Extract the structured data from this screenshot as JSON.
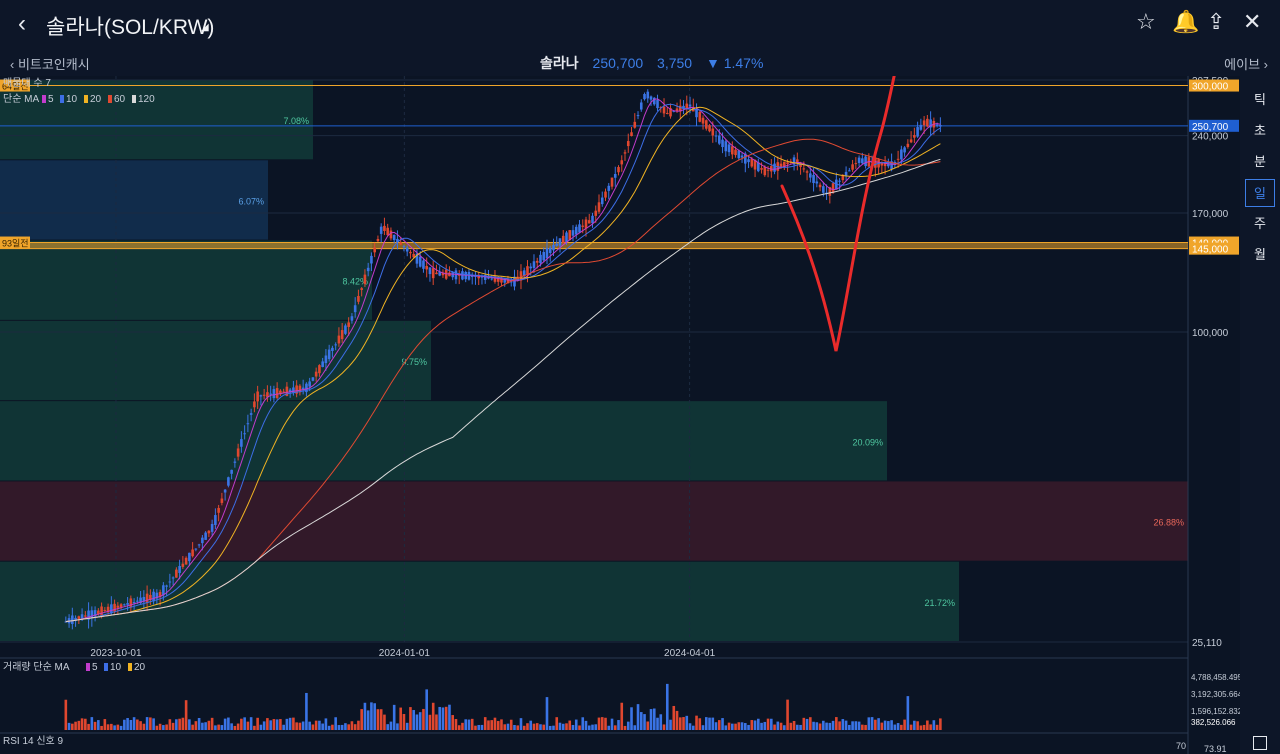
{
  "header": {
    "title": "솔라나(SOL/KRW)",
    "prev_coin": "비트코인캐시",
    "next_coin": "에이브",
    "ticker_name": "솔라나",
    "price": "250,700",
    "change": "3,750",
    "change_pct": "▼ 1.47%"
  },
  "timeframes": [
    {
      "label": "틱",
      "active": false
    },
    {
      "label": "초",
      "active": false
    },
    {
      "label": "분",
      "active": false
    },
    {
      "label": "일",
      "active": true
    },
    {
      "label": "주",
      "active": false
    },
    {
      "label": "월",
      "active": false
    }
  ],
  "chart_data": {
    "type": "candlestick",
    "title": "솔라나(SOL/KRW)",
    "ylabel": "",
    "xlabel": "",
    "y_scale": "log",
    "ylim": [
      25110,
      307500
    ],
    "y_ticks": [
      "307,500",
      "240,000",
      "170,000",
      "100,000",
      "25,110"
    ],
    "x_ticks": [
      "2023-10-01",
      "2024-01-01",
      "2024-04-01"
    ],
    "legend_texts": {
      "volume_profile": "매물대 수 7",
      "ma": "단순 MA",
      "ma_periods": [
        "5",
        "10",
        "20",
        "60",
        "120"
      ],
      "volume": "거래량 단순 MA",
      "volume_ma_periods": [
        "5",
        "10",
        "20"
      ],
      "rsi": "RSI 14 신호 9"
    },
    "price_badges": [
      {
        "label": "300,000",
        "value": 300000,
        "color": "#f0a52a"
      },
      {
        "label": "250,700",
        "value": 250700,
        "color": "#1f5fd1"
      },
      {
        "label": "149,000",
        "value": 149000,
        "color": "#f0a52a"
      },
      {
        "label": "145,000",
        "value": 145000,
        "color": "#f0a52a"
      }
    ],
    "left_labels": [
      {
        "label": "64일전",
        "value": 300000
      },
      {
        "label": "93일전",
        "value": 149000
      }
    ],
    "volume_profile": [
      {
        "pct": "7.08%",
        "color": "#123a38"
      },
      {
        "pct": "6.07%",
        "color": "#133052"
      },
      {
        "pct": "8.42%",
        "color": "#123a38"
      },
      {
        "pct": "9.75%",
        "color": "#123a38"
      },
      {
        "pct": "20.09%",
        "color": "#123a38"
      },
      {
        "pct": "26.88%",
        "color": "#3a1a2a"
      },
      {
        "pct": "21.72%",
        "color": "#123a38"
      }
    ],
    "price_path": [
      {
        "date": "2023-09-15",
        "close": 27500
      },
      {
        "date": "2023-10-15",
        "close": 31000
      },
      {
        "date": "2023-11-01",
        "close": 42000
      },
      {
        "date": "2023-11-15",
        "close": 75000
      },
      {
        "date": "2023-12-01",
        "close": 78000
      },
      {
        "date": "2023-12-15",
        "close": 105000
      },
      {
        "date": "2023-12-25",
        "close": 160000
      },
      {
        "date": "2024-01-10",
        "close": 130000
      },
      {
        "date": "2024-01-25",
        "close": 128000
      },
      {
        "date": "2024-02-05",
        "close": 125000
      },
      {
        "date": "2024-02-20",
        "close": 150000
      },
      {
        "date": "2024-03-01",
        "close": 165000
      },
      {
        "date": "2024-03-10",
        "close": 210000
      },
      {
        "date": "2024-03-18",
        "close": 290000
      },
      {
        "date": "2024-03-25",
        "close": 265000
      },
      {
        "date": "2024-04-01",
        "close": 275000
      },
      {
        "date": "2024-04-12",
        "close": 230000
      },
      {
        "date": "2024-04-25",
        "close": 205000
      },
      {
        "date": "2024-05-05",
        "close": 215000
      },
      {
        "date": "2024-05-15",
        "close": 185000
      },
      {
        "date": "2024-05-25",
        "close": 215000
      },
      {
        "date": "2024-06-05",
        "close": 210000
      },
      {
        "date": "2024-06-15",
        "close": 255000
      },
      {
        "date": "2024-06-20",
        "close": 250700
      }
    ],
    "ma_lines": [
      {
        "period": "5",
        "color": "#c23ccc"
      },
      {
        "period": "10",
        "color": "#3d6ee6"
      },
      {
        "period": "20",
        "color": "#f0b323"
      },
      {
        "period": "60",
        "color": "#e04a32"
      },
      {
        "period": "120",
        "color": "#d8d8d8"
      }
    ],
    "volume_ticks": [
      "4,788,458.495",
      "3,192,305.664",
      "1,596,152.832",
      "382,526.066"
    ],
    "rsi_ticks": [
      "70",
      "73.91"
    ],
    "annotation": "hand-drawn red arrow: dip then rise above 300,000"
  }
}
